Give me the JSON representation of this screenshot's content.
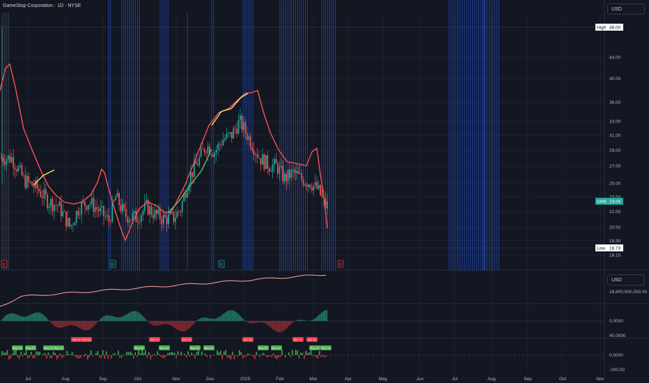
{
  "header": {
    "title": "GameStop Corporation · 1D · NYSE"
  },
  "currency_label": "USD",
  "currency_label_2": "USD",
  "colors": {
    "background": "#131722",
    "up": "#26a69a",
    "down": "#ef5350",
    "blue_lines": "#2962ff",
    "ma_line": "#ff5252"
  },
  "price_axis": {
    "ticks": [
      "44.00",
      "40.00",
      "36.00",
      "33.00",
      "31.00",
      "29.00",
      "27.00",
      "25.00",
      "23.50",
      "22.00",
      "20.50",
      "19.30",
      "18.10"
    ],
    "high_label": "High",
    "high_value": "48.00",
    "low_label": "Low",
    "low_value": "18.73",
    "last_label": "GME",
    "last_value": "23.05"
  },
  "volume_axis": {
    "label": "18,800,000,000.00"
  },
  "osc_axis": {
    "label": "0.0000"
  },
  "signal_axis": {
    "top_label": "40.0000",
    "zero_label": "0.0000",
    "bottom_label": "-200.00"
  },
  "time_axis": {
    "ticks": [
      "Jul",
      "Aug",
      "Sep",
      "Oct",
      "Nov",
      "Dec",
      "2025",
      "Feb",
      "Mar",
      "Apr",
      "May",
      "Jun",
      "Jul",
      "Aug",
      "Sep",
      "Oct",
      "Nov"
    ]
  },
  "earnings_markers": [
    "E",
    "E",
    "E",
    "E"
  ],
  "signal_labels": {
    "buy": "Buy On",
    "sell": "Sell On"
  },
  "chart_data": {
    "type": "candlestick",
    "symbol": "GME",
    "y_axis": "log",
    "ylim": [
      17.5,
      52
    ],
    "high": 48.0,
    "low": 18.73,
    "last": 23.05,
    "months": [
      "Jul 2024",
      "Aug",
      "Sep",
      "Oct",
      "Nov",
      "Dec",
      "2025",
      "Feb",
      "Mar",
      "Apr",
      "May",
      "Jun",
      "Jul",
      "Aug",
      "Sep",
      "Oct",
      "Nov"
    ],
    "close_path": [
      [
        "2024-06-18",
        28.0
      ],
      [
        "2024-06-28",
        25.3
      ],
      [
        "2024-07-08",
        24.5
      ],
      [
        "2024-07-18",
        23.0
      ],
      [
        "2024-07-26",
        22.6
      ],
      [
        "2024-08-05",
        20.5
      ],
      [
        "2024-08-12",
        22.4
      ],
      [
        "2024-08-20",
        23.0
      ],
      [
        "2024-08-28",
        22.2
      ],
      [
        "2024-09-06",
        21.1
      ],
      [
        "2024-09-12",
        23.5
      ],
      [
        "2024-09-20",
        21.6
      ],
      [
        "2024-09-30",
        21.4
      ],
      [
        "2024-10-08",
        22.5
      ],
      [
        "2024-10-15",
        21.7
      ],
      [
        "2024-10-22",
        21.3
      ],
      [
        "2024-10-30",
        21.4
      ],
      [
        "2024-11-05",
        22.3
      ],
      [
        "2024-11-12",
        25.5
      ],
      [
        "2024-11-20",
        27.5
      ],
      [
        "2024-11-27",
        29.6
      ],
      [
        "2024-12-05",
        28.8
      ],
      [
        "2024-12-12",
        30.4
      ],
      [
        "2024-12-20",
        31.0
      ],
      [
        "2024-12-27",
        33.0
      ],
      [
        "2025-01-02",
        31.3
      ],
      [
        "2025-01-07",
        29.9
      ],
      [
        "2025-01-14",
        28.0
      ],
      [
        "2025-01-22",
        27.1
      ],
      [
        "2025-01-29",
        27.0
      ],
      [
        "2025-02-05",
        25.5
      ],
      [
        "2025-02-12",
        26.2
      ],
      [
        "2025-02-20",
        25.4
      ],
      [
        "2025-02-27",
        25.0
      ],
      [
        "2025-03-05",
        24.3
      ],
      [
        "2025-03-12",
        22.5
      ],
      [
        "2025-03-17",
        23.05
      ]
    ],
    "blue_vertical_lines": {
      "from_dates": [
        [
          "2024-10-02",
          10
        ],
        [
          "2024-11-11",
          8
        ],
        [
          "2025-01-09",
          7
        ],
        [
          "2025-02-03",
          9
        ],
        [
          "2025-03-11",
          6
        ],
        [
          "2025-07-16",
          7
        ],
        [
          "2025-08-11",
          7
        ]
      ]
    },
    "earnings_dates": [
      "2024-06-11",
      "2024-09-10",
      "2024-12-10",
      "2025-03-19"
    ]
  }
}
